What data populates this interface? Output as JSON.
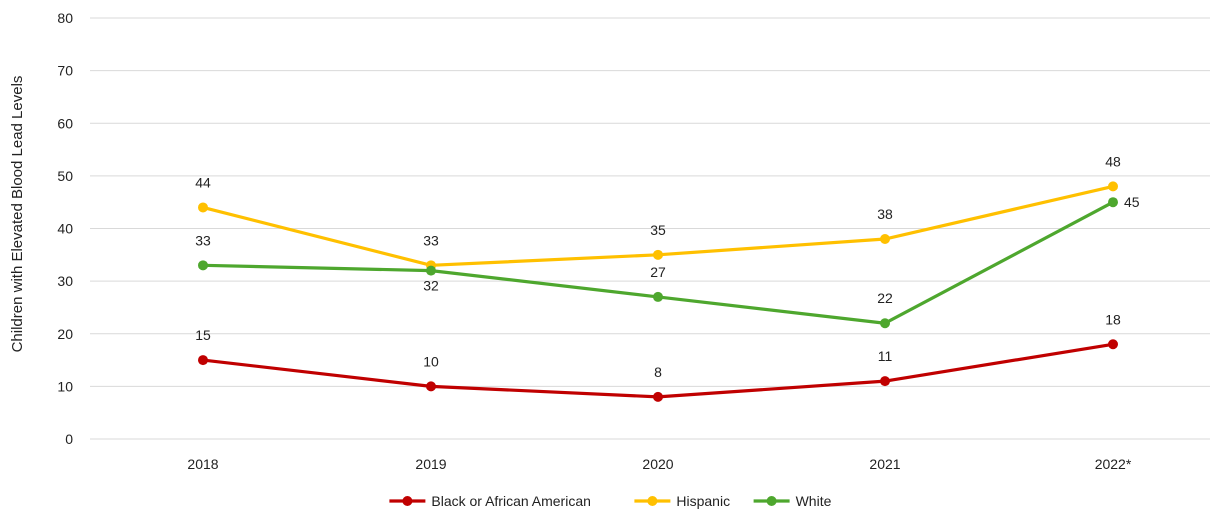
{
  "chart_data": {
    "type": "line",
    "title": "",
    "xlabel": "",
    "ylabel": "Children with Elevated Blood Lead Levels",
    "categories": [
      "2018",
      "2019",
      "2020",
      "2021",
      "2022*"
    ],
    "ylim": [
      0,
      80
    ],
    "yticks": [
      0,
      10,
      20,
      30,
      40,
      50,
      60,
      70,
      80
    ],
    "grid": true,
    "legend_position": "bottom",
    "series": [
      {
        "name": "Black or African American",
        "color": "#C00000",
        "values": [
          15,
          10,
          8,
          11,
          18
        ]
      },
      {
        "name": "Hispanic",
        "color": "#FFC000",
        "values": [
          44,
          33,
          35,
          38,
          48
        ]
      },
      {
        "name": "White",
        "color": "#4EA72E",
        "values": [
          33,
          32,
          27,
          22,
          45
        ]
      }
    ]
  }
}
